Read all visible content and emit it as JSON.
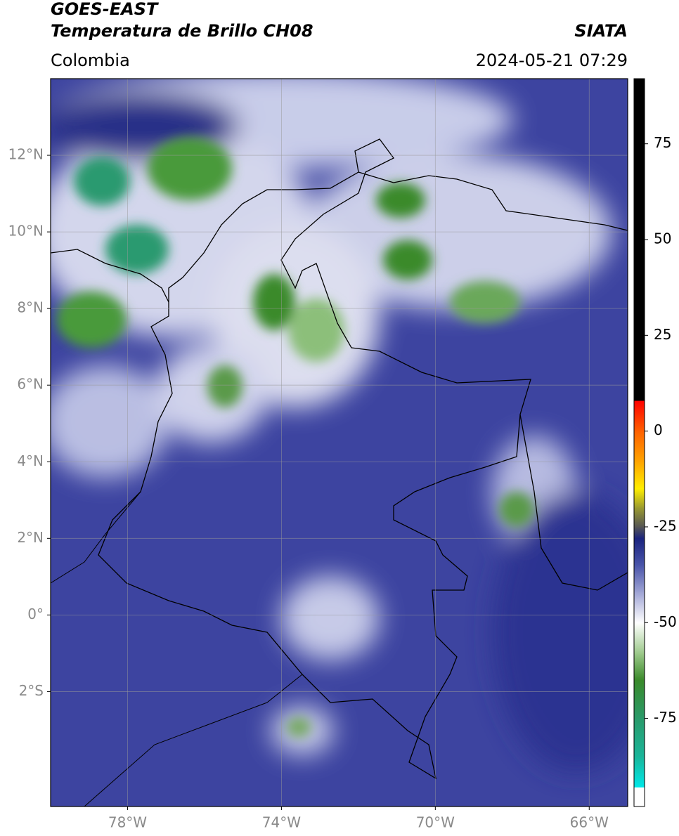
{
  "header": {
    "title": "GOES-EAST",
    "subtitle": "Temperatura de Brillo CH08",
    "source": "SIATA",
    "region": "Colombia",
    "timestamp": "2024-05-21 07:29"
  },
  "map": {
    "xlim": [
      -80,
      -65
    ],
    "ylim": [
      -5,
      14
    ],
    "xticks": [
      {
        "value": -78,
        "label": "78°W"
      },
      {
        "value": -74,
        "label": "74°W"
      },
      {
        "value": -70,
        "label": "70°W"
      },
      {
        "value": -66,
        "label": "66°W"
      }
    ],
    "yticks": [
      {
        "value": 12,
        "label": "12°N"
      },
      {
        "value": 10,
        "label": "10°N"
      },
      {
        "value": 8,
        "label": "8°N"
      },
      {
        "value": 6,
        "label": "6°N"
      },
      {
        "value": 4,
        "label": "4°N"
      },
      {
        "value": 2,
        "label": "2°N"
      },
      {
        "value": 0,
        "label": "0°"
      },
      {
        "value": -2,
        "label": "2°S"
      }
    ],
    "grid": true
  },
  "colorbar": {
    "lim": [
      -98,
      92
    ],
    "ticks": [
      -75,
      -50,
      -25,
      0,
      25,
      50,
      75
    ],
    "stops": [
      {
        "value": -98,
        "color": "#ffffff"
      },
      {
        "value": -93,
        "color": "#ffffff"
      },
      {
        "value": -92.9,
        "color": "#00e8e8"
      },
      {
        "value": -85,
        "color": "#1ab59a"
      },
      {
        "value": -75,
        "color": "#2a9a6a"
      },
      {
        "value": -65,
        "color": "#3a8a2a"
      },
      {
        "value": -58,
        "color": "#9cc98a"
      },
      {
        "value": -50,
        "color": "#ffffff"
      },
      {
        "value": -42,
        "color": "#9ea3d4"
      },
      {
        "value": -35,
        "color": "#4a55aa"
      },
      {
        "value": -28,
        "color": "#1a237e"
      },
      {
        "value": -25,
        "color": "#555555"
      },
      {
        "value": -20,
        "color": "#9a9a30"
      },
      {
        "value": -15,
        "color": "#ffee00"
      },
      {
        "value": -8,
        "color": "#ffa500"
      },
      {
        "value": 0,
        "color": "#ff6000"
      },
      {
        "value": 8,
        "color": "#ff0000"
      },
      {
        "value": 8,
        "color": "#000000"
      },
      {
        "value": 92,
        "color": "#000000"
      }
    ]
  }
}
